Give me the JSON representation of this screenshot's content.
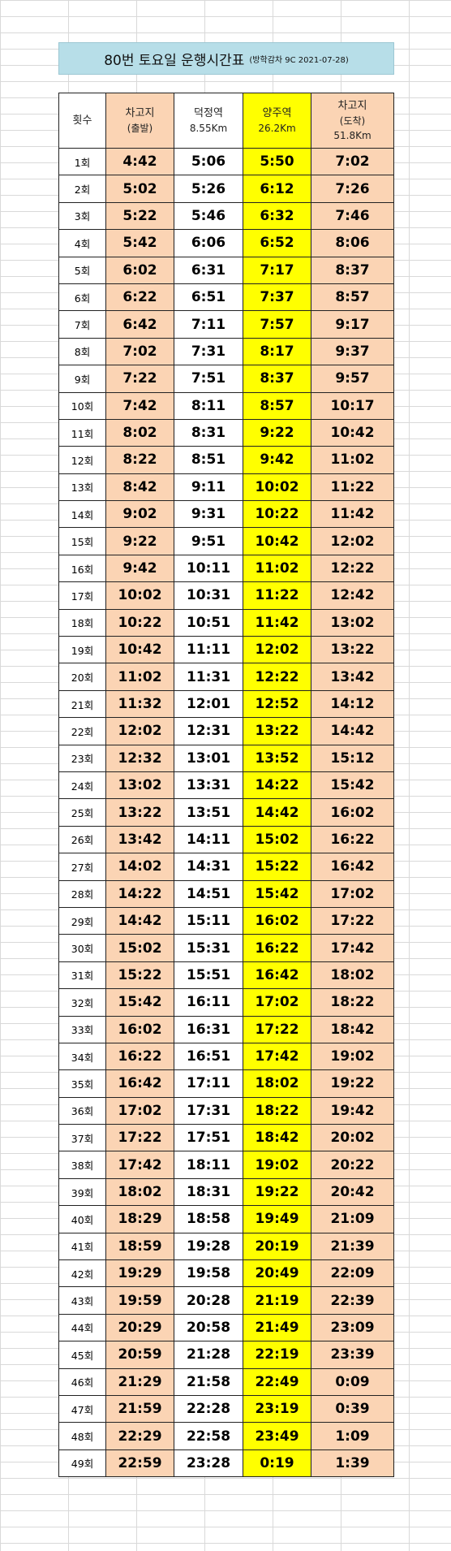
{
  "title": {
    "main": "80번 토요일 운행시간표",
    "sub": "(방학감차 9C 2021-07-28)"
  },
  "headers": [
    {
      "label": "횟수",
      "sub": ""
    },
    {
      "label": "차고지",
      "sub": "(출발)"
    },
    {
      "label": "덕정역",
      "sub": "8.55Km"
    },
    {
      "label": "양주역",
      "sub": "26.2Km"
    },
    {
      "label": "차고지",
      "sub": "(도착)",
      "sub2": "51.8Km"
    }
  ],
  "colors": {
    "depot": "#fbd4b4",
    "yangju": "#ffff00",
    "title_bg": "#b7dee8"
  },
  "rows": [
    [
      "1회",
      "4:42",
      "5:06",
      "5:50",
      "7:02"
    ],
    [
      "2회",
      "5:02",
      "5:26",
      "6:12",
      "7:26"
    ],
    [
      "3회",
      "5:22",
      "5:46",
      "6:32",
      "7:46"
    ],
    [
      "4회",
      "5:42",
      "6:06",
      "6:52",
      "8:06"
    ],
    [
      "5회",
      "6:02",
      "6:31",
      "7:17",
      "8:37"
    ],
    [
      "6회",
      "6:22",
      "6:51",
      "7:37",
      "8:57"
    ],
    [
      "7회",
      "6:42",
      "7:11",
      "7:57",
      "9:17"
    ],
    [
      "8회",
      "7:02",
      "7:31",
      "8:17",
      "9:37"
    ],
    [
      "9회",
      "7:22",
      "7:51",
      "8:37",
      "9:57"
    ],
    [
      "10회",
      "7:42",
      "8:11",
      "8:57",
      "10:17"
    ],
    [
      "11회",
      "8:02",
      "8:31",
      "9:22",
      "10:42"
    ],
    [
      "12회",
      "8:22",
      "8:51",
      "9:42",
      "11:02"
    ],
    [
      "13회",
      "8:42",
      "9:11",
      "10:02",
      "11:22"
    ],
    [
      "14회",
      "9:02",
      "9:31",
      "10:22",
      "11:42"
    ],
    [
      "15회",
      "9:22",
      "9:51",
      "10:42",
      "12:02"
    ],
    [
      "16회",
      "9:42",
      "10:11",
      "11:02",
      "12:22"
    ],
    [
      "17회",
      "10:02",
      "10:31",
      "11:22",
      "12:42"
    ],
    [
      "18회",
      "10:22",
      "10:51",
      "11:42",
      "13:02"
    ],
    [
      "19회",
      "10:42",
      "11:11",
      "12:02",
      "13:22"
    ],
    [
      "20회",
      "11:02",
      "11:31",
      "12:22",
      "13:42"
    ],
    [
      "21회",
      "11:32",
      "12:01",
      "12:52",
      "14:12"
    ],
    [
      "22회",
      "12:02",
      "12:31",
      "13:22",
      "14:42"
    ],
    [
      "23회",
      "12:32",
      "13:01",
      "13:52",
      "15:12"
    ],
    [
      "24회",
      "13:02",
      "13:31",
      "14:22",
      "15:42"
    ],
    [
      "25회",
      "13:22",
      "13:51",
      "14:42",
      "16:02"
    ],
    [
      "26회",
      "13:42",
      "14:11",
      "15:02",
      "16:22"
    ],
    [
      "27회",
      "14:02",
      "14:31",
      "15:22",
      "16:42"
    ],
    [
      "28회",
      "14:22",
      "14:51",
      "15:42",
      "17:02"
    ],
    [
      "29회",
      "14:42",
      "15:11",
      "16:02",
      "17:22"
    ],
    [
      "30회",
      "15:02",
      "15:31",
      "16:22",
      "17:42"
    ],
    [
      "31회",
      "15:22",
      "15:51",
      "16:42",
      "18:02"
    ],
    [
      "32회",
      "15:42",
      "16:11",
      "17:02",
      "18:22"
    ],
    [
      "33회",
      "16:02",
      "16:31",
      "17:22",
      "18:42"
    ],
    [
      "34회",
      "16:22",
      "16:51",
      "17:42",
      "19:02"
    ],
    [
      "35회",
      "16:42",
      "17:11",
      "18:02",
      "19:22"
    ],
    [
      "36회",
      "17:02",
      "17:31",
      "18:22",
      "19:42"
    ],
    [
      "37회",
      "17:22",
      "17:51",
      "18:42",
      "20:02"
    ],
    [
      "38회",
      "17:42",
      "18:11",
      "19:02",
      "20:22"
    ],
    [
      "39회",
      "18:02",
      "18:31",
      "19:22",
      "20:42"
    ],
    [
      "40회",
      "18:29",
      "18:58",
      "19:49",
      "21:09"
    ],
    [
      "41회",
      "18:59",
      "19:28",
      "20:19",
      "21:39"
    ],
    [
      "42회",
      "19:29",
      "19:58",
      "20:49",
      "22:09"
    ],
    [
      "43회",
      "19:59",
      "20:28",
      "21:19",
      "22:39"
    ],
    [
      "44회",
      "20:29",
      "20:58",
      "21:49",
      "23:09"
    ],
    [
      "45회",
      "20:59",
      "21:28",
      "22:19",
      "23:39"
    ],
    [
      "46회",
      "21:29",
      "21:58",
      "22:49",
      "0:09"
    ],
    [
      "47회",
      "21:59",
      "22:28",
      "23:19",
      "0:39"
    ],
    [
      "48회",
      "22:29",
      "22:58",
      "23:49",
      "1:09"
    ],
    [
      "49회",
      "22:59",
      "23:28",
      "0:19",
      "1:39"
    ]
  ]
}
